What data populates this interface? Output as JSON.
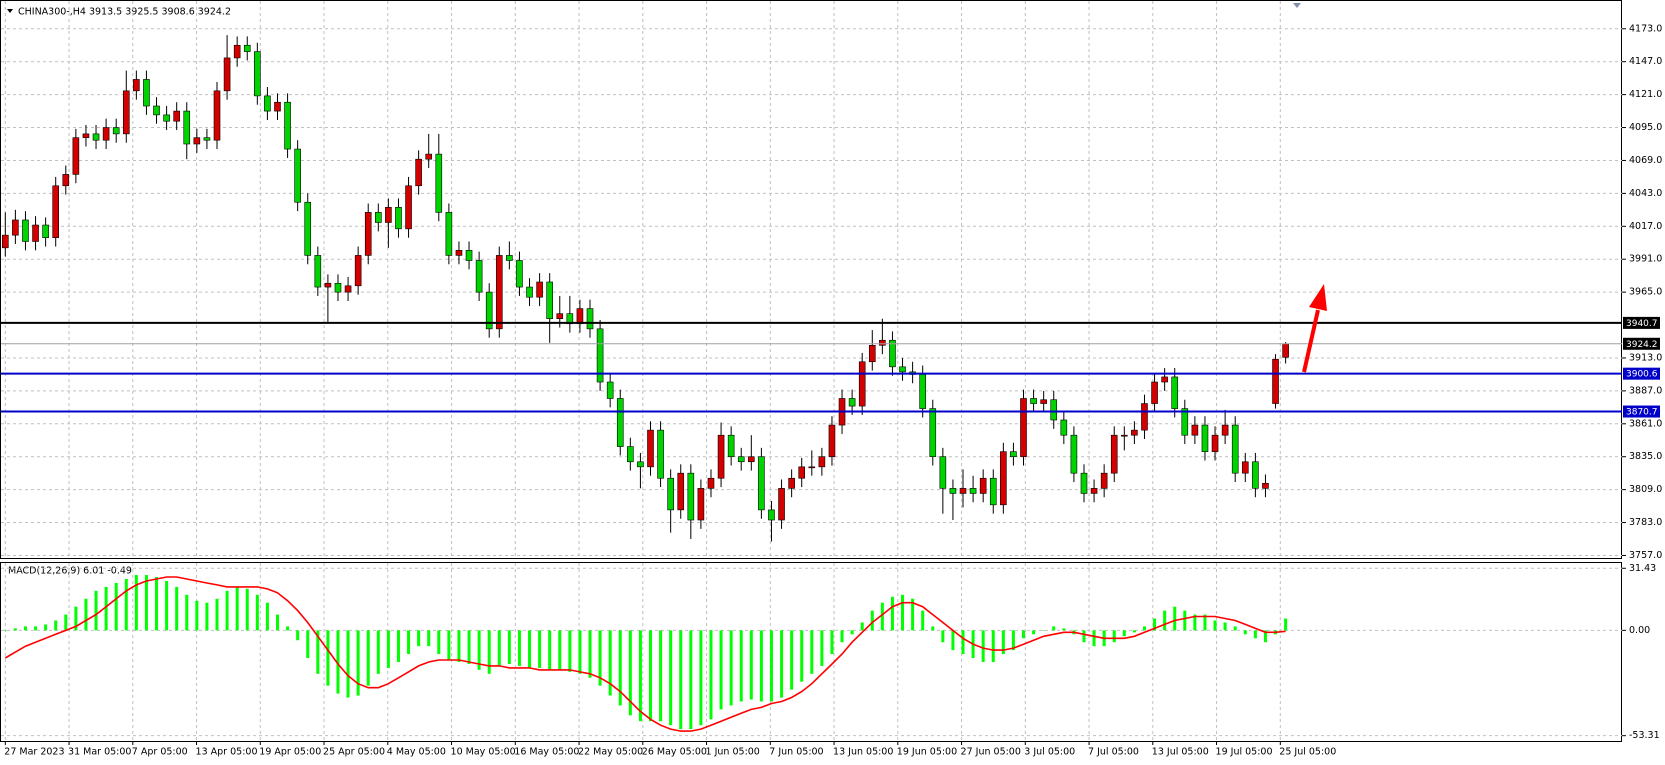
{
  "chart_data": {
    "type": "candlestick",
    "title": "CHINA300-,H4  3913.5 3925.5 3908.6 3924.2",
    "up_color": "#d40000",
    "down_color": "#00d400",
    "ylim": [
      3755,
      4191
    ],
    "yticks": [
      {
        "value": 4173,
        "label": "4173.0"
      },
      {
        "value": 4147,
        "label": "4147.0"
      },
      {
        "value": 4121,
        "label": "4121.0"
      },
      {
        "value": 4095,
        "label": "4095.0"
      },
      {
        "value": 4069,
        "label": "4069.0"
      },
      {
        "value": 4043,
        "label": "4043.0"
      },
      {
        "value": 4017,
        "label": "4017.0"
      },
      {
        "value": 3991,
        "label": "3991.0"
      },
      {
        "value": 3965,
        "label": "3965.0"
      },
      {
        "value": 3913,
        "label": "3913.0"
      },
      {
        "value": 3887,
        "label": "3887.0"
      },
      {
        "value": 3861,
        "label": "3861.0"
      },
      {
        "value": 3835,
        "label": "3835.0"
      },
      {
        "value": 3809,
        "label": "3809.0"
      },
      {
        "value": 3783,
        "label": "3783.0"
      },
      {
        "value": 3757,
        "label": "3757.0"
      }
    ],
    "grid": true,
    "xtick_labels": [
      "27 Mar 2023",
      "31 Mar 05:00",
      "7 Apr 05:00",
      "13 Apr 05:00",
      "19 Apr 05:00",
      "25 Apr 05:00",
      "4 May 05:00",
      "10 May 05:00",
      "16 May 05:00",
      "22 May 05:00",
      "26 May 05:00",
      "1 Jun 05:00",
      "7 Jun 05:00",
      "13 Jun 05:00",
      "19 Jun 05:00",
      "27 Jun 05:00",
      "3 Jul 05:00",
      "7 Jul 05:00",
      "13 Jul 05:00",
      "19 Jul 05:00",
      "25 Jul 05:00"
    ],
    "levels": [
      {
        "value": 3940.7,
        "color": "#000000"
      },
      {
        "value": 3900.6,
        "color": "#0000c8"
      },
      {
        "value": 3870.7,
        "color": "#0000c8"
      }
    ],
    "price_line": {
      "value": 3924.2,
      "color": "#a0a0a0"
    },
    "candles": [
      [
        4000,
        4028,
        3993,
        4010
      ],
      [
        4010,
        4030,
        4003,
        4022
      ],
      [
        4022,
        4029,
        3998,
        4005
      ],
      [
        4005,
        4025,
        3998,
        4018
      ],
      [
        4018,
        4024,
        4001,
        4008
      ],
      [
        4008,
        4056,
        4001,
        4049
      ],
      [
        4049,
        4065,
        4042,
        4058
      ],
      [
        4058,
        4094,
        4051,
        4087
      ],
      [
        4087,
        4097,
        4080,
        4090
      ],
      [
        4090,
        4097,
        4078,
        4085
      ],
      [
        4085,
        4102,
        4078,
        4095
      ],
      [
        4095,
        4102,
        4083,
        4090
      ],
      [
        4090,
        4140,
        4083,
        4124
      ],
      [
        4124,
        4140,
        4117,
        4133
      ],
      [
        4133,
        4140,
        4105,
        4112
      ],
      [
        4112,
        4119,
        4098,
        4105
      ],
      [
        4105,
        4112,
        4093,
        4100
      ],
      [
        4100,
        4115,
        4093,
        4108
      ],
      [
        4108,
        4115,
        4070,
        4082
      ],
      [
        4082,
        4094,
        4075,
        4087
      ],
      [
        4087,
        4094,
        4078,
        4085
      ],
      [
        4085,
        4131,
        4078,
        4124
      ],
      [
        4124,
        4168,
        4117,
        4150
      ],
      [
        4150,
        4167,
        4143,
        4160
      ],
      [
        4160,
        4167,
        4148,
        4155
      ],
      [
        4155,
        4162,
        4113,
        4120
      ],
      [
        4120,
        4127,
        4101,
        4108
      ],
      [
        4108,
        4122,
        4101,
        4115
      ],
      [
        4115,
        4122,
        4071,
        4078
      ],
      [
        4078,
        4085,
        4029,
        4036
      ],
      [
        4036,
        4043,
        3987,
        3994
      ],
      [
        3994,
        4001,
        3962,
        3969
      ],
      [
        3969,
        3979,
        3940,
        3972
      ],
      [
        3972,
        3979,
        3958,
        3965
      ],
      [
        3965,
        3977,
        3958,
        3970
      ],
      [
        3970,
        4001,
        3963,
        3994
      ],
      [
        3994,
        4035,
        3987,
        4028
      ],
      [
        4028,
        4035,
        4013,
        4020
      ],
      [
        4020,
        4039,
        4000,
        4032
      ],
      [
        4032,
        4039,
        4008,
        4015
      ],
      [
        4015,
        4056,
        4008,
        4049
      ],
      [
        4049,
        4077,
        4042,
        4070
      ],
      [
        4070,
        4090,
        4063,
        4074
      ],
      [
        4074,
        4090,
        4021,
        4028
      ],
      [
        4028,
        4035,
        3987,
        3994
      ],
      [
        3994,
        4005,
        3987,
        3998
      ],
      [
        3998,
        4005,
        3983,
        3990
      ],
      [
        3990,
        3997,
        3958,
        3965
      ],
      [
        3965,
        3972,
        3929,
        3936
      ],
      [
        3936,
        4001,
        3929,
        3994
      ],
      [
        3994,
        4005,
        3983,
        3990
      ],
      [
        3990,
        3997,
        3962,
        3969
      ],
      [
        3969,
        3976,
        3954,
        3961
      ],
      [
        3961,
        3980,
        3954,
        3973
      ],
      [
        3973,
        3980,
        3925,
        3944
      ],
      [
        3944,
        3962,
        3937,
        3948
      ],
      [
        3948,
        3962,
        3933,
        3940
      ],
      [
        3940,
        3959,
        3933,
        3952
      ],
      [
        3952,
        3959,
        3929,
        3936
      ],
      [
        3936,
        3943,
        3887,
        3894
      ],
      [
        3894,
        3901,
        3874,
        3881
      ],
      [
        3881,
        3888,
        3836,
        3843
      ],
      [
        3843,
        3850,
        3824,
        3831
      ],
      [
        3831,
        3838,
        3810,
        3827
      ],
      [
        3827,
        3863,
        3820,
        3856
      ],
      [
        3856,
        3863,
        3811,
        3818
      ],
      [
        3818,
        3825,
        3775,
        3793
      ],
      [
        3793,
        3829,
        3786,
        3822
      ],
      [
        3822,
        3829,
        3770,
        3785
      ],
      [
        3785,
        3817,
        3778,
        3810
      ],
      [
        3810,
        3825,
        3803,
        3818
      ],
      [
        3818,
        3862,
        3811,
        3852
      ],
      [
        3852,
        3859,
        3828,
        3835
      ],
      [
        3835,
        3842,
        3824,
        3831
      ],
      [
        3831,
        3852,
        3824,
        3835
      ],
      [
        3835,
        3842,
        3786,
        3793
      ],
      [
        3793,
        3800,
        3768,
        3785
      ],
      [
        3785,
        3817,
        3778,
        3810
      ],
      [
        3810,
        3825,
        3803,
        3818
      ],
      [
        3818,
        3834,
        3811,
        3827
      ],
      [
        3827,
        3840,
        3820,
        3827
      ],
      [
        3827,
        3842,
        3820,
        3835
      ],
      [
        3835,
        3867,
        3828,
        3860
      ],
      [
        3860,
        3888,
        3853,
        3881
      ],
      [
        3881,
        3888,
        3868,
        3875
      ],
      [
        3875,
        3917,
        3868,
        3910
      ],
      [
        3910,
        3935,
        3903,
        3923
      ],
      [
        3923,
        3944,
        3916,
        3927
      ],
      [
        3927,
        3934,
        3899,
        3906
      ],
      [
        3906,
        3913,
        3895,
        3902
      ],
      [
        3902,
        3910,
        3893,
        3900
      ],
      [
        3900,
        3907,
        3866,
        3873
      ],
      [
        3873,
        3880,
        3828,
        3835
      ],
      [
        3835,
        3842,
        3790,
        3810
      ],
      [
        3810,
        3817,
        3785,
        3806
      ],
      [
        3806,
        3825,
        3795,
        3810
      ],
      [
        3810,
        3820,
        3799,
        3806
      ],
      [
        3806,
        3825,
        3799,
        3818
      ],
      [
        3818,
        3825,
        3790,
        3797
      ],
      [
        3797,
        3846,
        3790,
        3839
      ],
      [
        3839,
        3846,
        3828,
        3835
      ],
      [
        3835,
        3888,
        3828,
        3881
      ],
      [
        3881,
        3888,
        3870,
        3877
      ],
      [
        3877,
        3887,
        3870,
        3880
      ],
      [
        3880,
        3887,
        3857,
        3864
      ],
      [
        3864,
        3871,
        3845,
        3852
      ],
      [
        3852,
        3859,
        3815,
        3822
      ],
      [
        3822,
        3829,
        3799,
        3806
      ],
      [
        3806,
        3817,
        3799,
        3810
      ],
      [
        3810,
        3829,
        3803,
        3822
      ],
      [
        3822,
        3859,
        3815,
        3852
      ],
      [
        3852,
        3859,
        3840,
        3852
      ],
      [
        3852,
        3863,
        3845,
        3856
      ],
      [
        3856,
        3884,
        3849,
        3877
      ],
      [
        3877,
        3901,
        3870,
        3894
      ],
      [
        3894,
        3905,
        3887,
        3898
      ],
      [
        3898,
        3905,
        3866,
        3873
      ],
      [
        3873,
        3880,
        3845,
        3852
      ],
      [
        3852,
        3867,
        3845,
        3860
      ],
      [
        3860,
        3867,
        3832,
        3839
      ],
      [
        3839,
        3859,
        3832,
        3852
      ],
      [
        3852,
        3872,
        3845,
        3860
      ],
      [
        3860,
        3867,
        3815,
        3822
      ],
      [
        3822,
        3838,
        3815,
        3831
      ],
      [
        3831,
        3838,
        3803,
        3810
      ],
      [
        3810,
        3821,
        3803,
        3814
      ],
      [
        3877,
        3916,
        3873,
        3912
      ],
      [
        3913.5,
        3925.5,
        3908.6,
        3924.2
      ]
    ],
    "macd": {
      "label": "MACD(12,26,9) 6.01 -0.49",
      "ylim": [
        -56,
        34.1
      ],
      "yticks": [
        31.43,
        {
          "value": 0,
          "label": "0.00"
        },
        -53.31
      ],
      "hist_color": "#00ff00",
      "signal_color": "#ff0000",
      "histogram": [
        0,
        1,
        2,
        2,
        3,
        5,
        8,
        12,
        16,
        20,
        22,
        24,
        26,
        28,
        28,
        27,
        25,
        22,
        18,
        15,
        14,
        16,
        20,
        22,
        21,
        18,
        14,
        8,
        2,
        -5,
        -14,
        -22,
        -28,
        -32,
        -34,
        -33,
        -28,
        -22,
        -19,
        -16,
        -12,
        -8,
        -8,
        -12,
        -15,
        -16,
        -17,
        -20,
        -22,
        -18,
        -17,
        -18,
        -19,
        -19,
        -20,
        -20,
        -21,
        -22,
        -24,
        -28,
        -33,
        -38,
        -43,
        -46,
        -46,
        -46,
        -48,
        -50,
        -50,
        -48,
        -45,
        -40,
        -38,
        -36,
        -35,
        -36,
        -36,
        -34,
        -30,
        -26,
        -22,
        -18,
        -12,
        -6,
        -2,
        4,
        10,
        14,
        17,
        18,
        16,
        10,
        2,
        -6,
        -10,
        -12,
        -14,
        -16,
        -16,
        -12,
        -10,
        -4,
        -2,
        0,
        2,
        1,
        -2,
        -6,
        -8,
        -8,
        -6,
        -3,
        -1,
        2,
        6,
        10,
        12,
        10,
        8,
        8,
        5,
        4,
        2,
        -2,
        -4,
        -6,
        -2,
        6.01
      ],
      "signal": [
        -14,
        -11,
        -8,
        -6,
        -4,
        -2,
        0,
        2,
        5,
        8,
        12,
        16,
        20,
        23,
        25,
        26,
        27,
        27,
        26,
        25,
        24,
        23,
        22,
        22,
        22,
        22,
        21,
        19,
        15,
        10,
        4,
        -3,
        -10,
        -17,
        -23,
        -27,
        -29,
        -29,
        -27,
        -24,
        -21,
        -18,
        -16,
        -15,
        -15,
        -15,
        -16,
        -17,
        -18,
        -18,
        -19,
        -19,
        -19,
        -20,
        -20,
        -20,
        -20,
        -21,
        -22,
        -24,
        -27,
        -31,
        -36,
        -41,
        -45,
        -48,
        -50,
        -51,
        -51,
        -50,
        -48,
        -46,
        -44,
        -42,
        -40,
        -39,
        -37,
        -36,
        -34,
        -31,
        -27,
        -22,
        -17,
        -12,
        -6,
        -1,
        4,
        8,
        12,
        14,
        14,
        12,
        8,
        4,
        0,
        -4,
        -7,
        -9,
        -10,
        -10,
        -9,
        -7,
        -5,
        -3,
        -2,
        -1,
        -1,
        -2,
        -3,
        -4,
        -4,
        -4,
        -3,
        -1,
        1,
        3,
        5,
        6,
        7,
        7,
        7,
        6,
        5,
        3,
        1,
        -1,
        -1,
        -0.49
      ]
    }
  }
}
